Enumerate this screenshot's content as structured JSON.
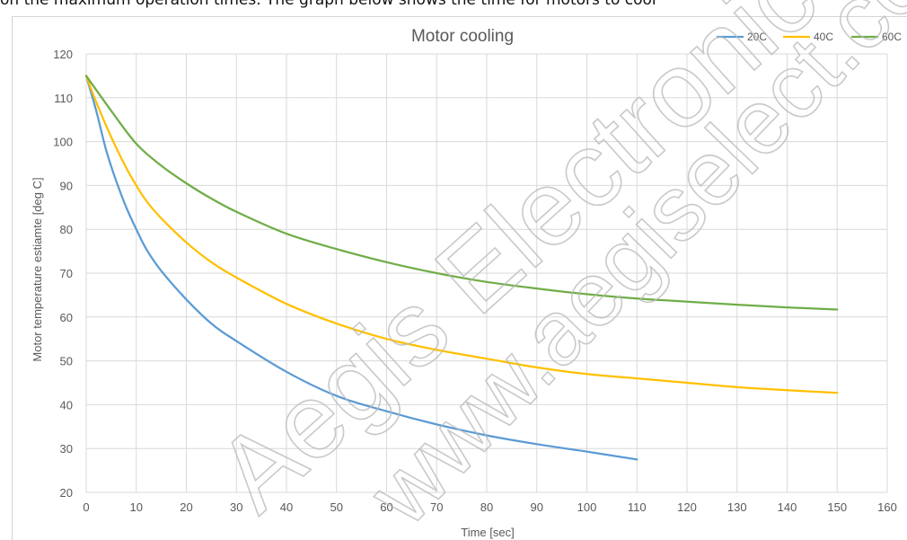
{
  "header_text": "on the maximum operation times.  The graph below shows the time for motors to cool",
  "watermark": {
    "line1": "Aegis Electronic",
    "line2": "www.aegiselect.com"
  },
  "chart_data": {
    "type": "line",
    "title": "Motor cooling",
    "xlabel": "Time [sec]",
    "ylabel": "Motor temperature estiamte [deg C]",
    "xlim": [
      0,
      160
    ],
    "ylim": [
      20,
      120
    ],
    "x_ticks": [
      "0",
      "10",
      "20",
      "30",
      "40",
      "50",
      "60",
      "70",
      "80",
      "90",
      "100",
      "110",
      "120",
      "130",
      "140",
      "150",
      "160"
    ],
    "y_ticks": [
      "20",
      "30",
      "40",
      "50",
      "60",
      "70",
      "80",
      "90",
      "100",
      "110",
      "120"
    ],
    "grid": true,
    "legend_position": "top-right",
    "series": [
      {
        "name": "20C",
        "color": "#5b9bd5",
        "points": [
          [
            0,
            115
          ],
          [
            2,
            107
          ],
          [
            4,
            98
          ],
          [
            6,
            91
          ],
          [
            8,
            85
          ],
          [
            10,
            80
          ],
          [
            12,
            75.5
          ],
          [
            15,
            70.5
          ],
          [
            20,
            64
          ],
          [
            25,
            58.5
          ],
          [
            30,
            54.5
          ],
          [
            40,
            47.5
          ],
          [
            50,
            42
          ],
          [
            60,
            38.5
          ],
          [
            70,
            35.5
          ],
          [
            80,
            33
          ],
          [
            90,
            31
          ],
          [
            100,
            29.3
          ],
          [
            110,
            27.5
          ]
        ]
      },
      {
        "name": "40C",
        "color": "#ffc000",
        "points": [
          [
            0,
            115
          ],
          [
            2,
            109
          ],
          [
            5,
            101
          ],
          [
            8,
            94
          ],
          [
            10,
            90
          ],
          [
            12,
            86.5
          ],
          [
            15,
            82.5
          ],
          [
            20,
            77
          ],
          [
            25,
            72.5
          ],
          [
            30,
            69
          ],
          [
            40,
            63
          ],
          [
            50,
            58.5
          ],
          [
            60,
            55
          ],
          [
            70,
            52.5
          ],
          [
            80,
            50.5
          ],
          [
            90,
            48.5
          ],
          [
            100,
            47
          ],
          [
            110,
            46
          ],
          [
            120,
            45
          ],
          [
            130,
            44
          ],
          [
            140,
            43.3
          ],
          [
            150,
            42.7
          ]
        ]
      },
      {
        "name": "60C",
        "color": "#70ad47",
        "points": [
          [
            0,
            115
          ],
          [
            5,
            107
          ],
          [
            10,
            99.5
          ],
          [
            15,
            94.5
          ],
          [
            20,
            90.5
          ],
          [
            25,
            87
          ],
          [
            30,
            84
          ],
          [
            40,
            79
          ],
          [
            50,
            75.5
          ],
          [
            60,
            72.5
          ],
          [
            70,
            70
          ],
          [
            80,
            68
          ],
          [
            90,
            66.5
          ],
          [
            100,
            65.2
          ],
          [
            110,
            64.2
          ],
          [
            120,
            63.5
          ],
          [
            130,
            62.8
          ],
          [
            140,
            62.2
          ],
          [
            150,
            61.7
          ]
        ]
      }
    ]
  }
}
